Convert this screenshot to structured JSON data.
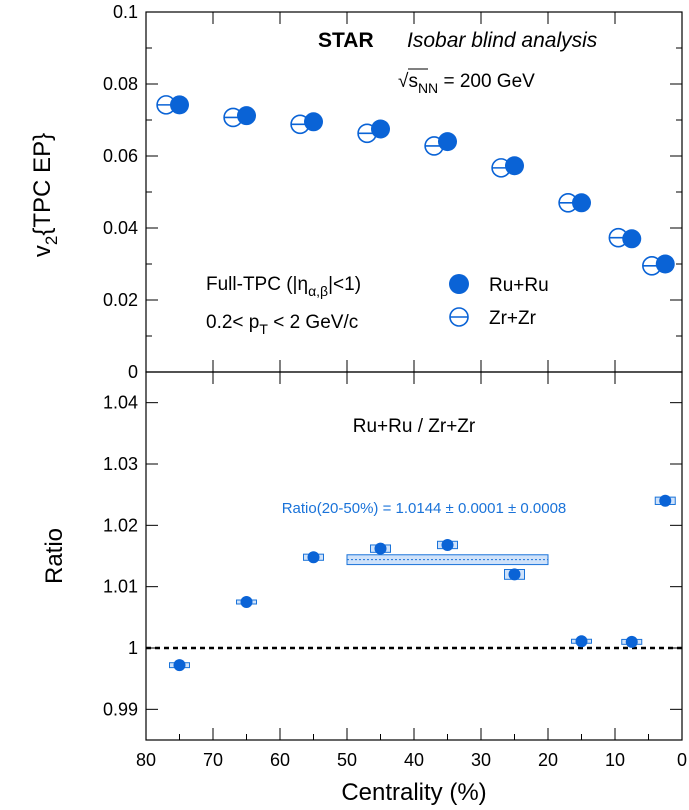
{
  "colors": {
    "marker": "#0a63d6",
    "band_fill": "#cfe2fa",
    "band_stroke": "#1a73d9"
  },
  "chart_data": [
    {
      "type": "scatter",
      "panel": "top",
      "xlabel": "",
      "ylabel_parts": {
        "main": "v",
        "sub": "2",
        "rest": "{TPC EP}"
      },
      "xlim": [
        80,
        0
      ],
      "ylim": [
        0,
        0.1
      ],
      "yticks": [
        "0",
        "0.02",
        "0.04",
        "0.06",
        "0.08",
        "0.1"
      ],
      "yticks_values": [
        0,
        0.02,
        0.04,
        0.06,
        0.08,
        0.1
      ],
      "annotations": {
        "star": "STAR",
        "blind": "Isobar blind analysis",
        "energy_sqrt": "√",
        "energy_s": "s",
        "energy_sub": "NN",
        "energy_rest": " = 200 GeV",
        "fulltpc_a": "Full-TPC (|η",
        "fulltpc_sub": "α,β",
        "fulltpc_b": "|<1)",
        "pt_a": "0.2< p",
        "pt_sub": "T",
        "pt_b": " < 2 GeV/c"
      },
      "series": [
        {
          "name": "Ru+Ru",
          "marker": "filled-circle",
          "x": [
            75,
            65,
            55,
            45,
            35,
            25,
            15,
            7.5,
            2.5
          ],
          "y": [
            0.0742,
            0.0712,
            0.0695,
            0.0675,
            0.064,
            0.0573,
            0.047,
            0.037,
            0.03
          ]
        },
        {
          "name": "Zr+Zr",
          "marker": "open-circle-with-line",
          "x": [
            77,
            67,
            57,
            47,
            37,
            27,
            17,
            9.5,
            4.5
          ],
          "y": [
            0.0742,
            0.0707,
            0.0688,
            0.0663,
            0.0628,
            0.0567,
            0.047,
            0.0373,
            0.0295
          ]
        }
      ]
    },
    {
      "type": "scatter",
      "panel": "bottom",
      "title": "Ru+Ru / Zr+Zr",
      "xlabel": "Centrality (%)",
      "ylabel": "Ratio",
      "xlim": [
        80,
        0
      ],
      "ylim": [
        0.985,
        1.045
      ],
      "xticks": [
        "80",
        "70",
        "60",
        "50",
        "40",
        "30",
        "20",
        "10",
        "0"
      ],
      "xticks_values": [
        80,
        70,
        60,
        50,
        40,
        30,
        20,
        10,
        0
      ],
      "yticks": [
        "0.99",
        "1",
        "1.01",
        "1.02",
        "1.03",
        "1.04"
      ],
      "yticks_values": [
        0.99,
        1.0,
        1.01,
        1.02,
        1.03,
        1.04
      ],
      "reference_line": 1.0,
      "band": {
        "label": "Ratio(20-50%) = 1.0144 ± 0.0001 ± 0.0008",
        "x": [
          50,
          20
        ],
        "value": 1.0144,
        "err": 0.0008
      },
      "series": [
        {
          "name": "Ru+Ru / Zr+Zr",
          "x": [
            75,
            65,
            55,
            45,
            35,
            25,
            15,
            7.5,
            2.5
          ],
          "y": [
            0.9972,
            1.0075,
            1.0148,
            1.0162,
            1.0168,
            1.012,
            1.0011,
            1.001,
            1.024
          ],
          "syst": [
            0.0004,
            0.0003,
            0.0005,
            0.0006,
            0.0006,
            0.0008,
            0.0003,
            0.0004,
            0.0006
          ]
        }
      ]
    }
  ]
}
